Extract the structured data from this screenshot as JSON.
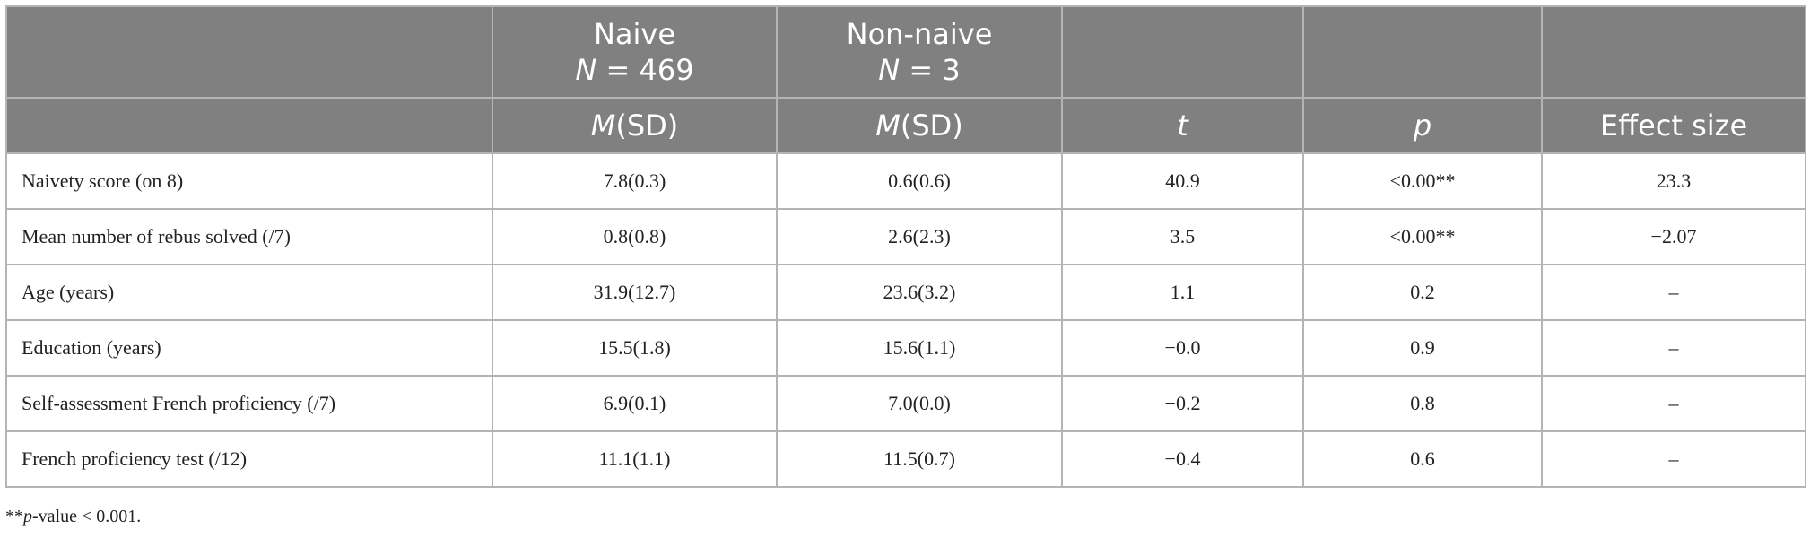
{
  "table": {
    "header_top": [
      {
        "title": "Naive",
        "italic": "N",
        "text": " = 469"
      },
      {
        "title": "Non-naive",
        "italic": "N",
        "text": " = 3"
      }
    ],
    "header_sub": [
      {
        "italic": "M",
        "text": "(SD)"
      },
      {
        "italic": "M",
        "text": "(SD)"
      },
      {
        "italic": "t"
      },
      {
        "italic": "p"
      },
      {
        "text": "Effect size"
      }
    ],
    "rows": [
      [
        "Naivety score (on 8)",
        "7.8(0.3)",
        "0.6(0.6)",
        "40.9",
        "<0.00**",
        "23.3"
      ],
      [
        "Mean number of rebus solved (/7)",
        "0.8(0.8)",
        "2.6(2.3)",
        "3.5",
        "<0.00**",
        "−2.07"
      ],
      [
        "Age (years)",
        "31.9(12.7)",
        "23.6(3.2)",
        "1.1",
        "0.2",
        "–"
      ],
      [
        "Education (years)",
        "15.5(1.8)",
        "15.6(1.1)",
        "−0.0",
        "0.9",
        "–"
      ],
      [
        "Self-assessment French proficiency (/7)",
        "6.9(0.1)",
        "7.0(0.0)",
        "−0.2",
        "0.8",
        "–"
      ],
      [
        "French proficiency test (/12)",
        "11.1(1.1)",
        "11.5(0.7)",
        "−0.4",
        "0.6",
        "–"
      ]
    ],
    "footnote": {
      "prefix": "**",
      "italic": "p",
      "text": "-value < 0.001."
    }
  }
}
